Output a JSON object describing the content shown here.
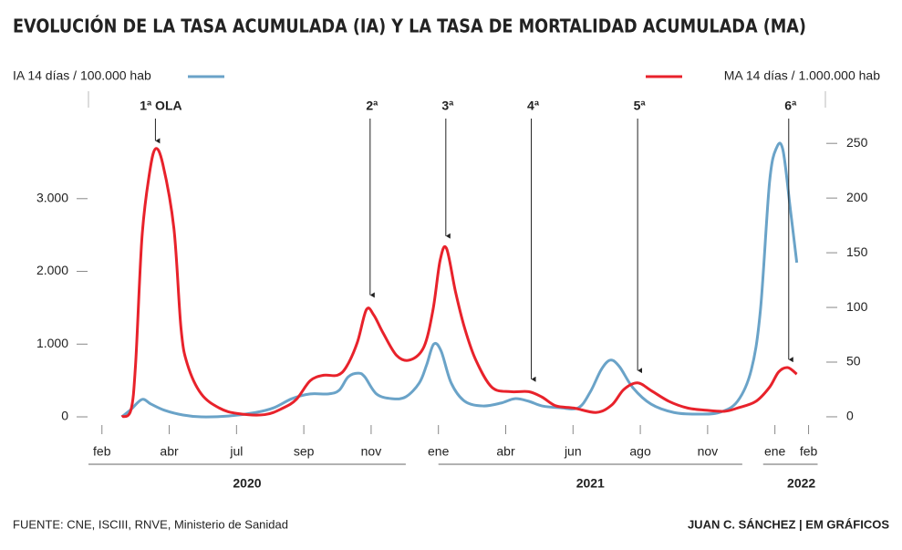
{
  "chart_data": {
    "type": "line",
    "title": "EVOLUCIÓN DE LA TASA ACUMULADA (IA) Y LA TASA DE MORTALIDAD ACUMULADA (MA)",
    "source": "FUENTE: CNE, ISCIII, RNVE, Ministerio de Sanidad",
    "credit": "JUAN C. SÁNCHEZ | EM GRÁFICOS",
    "xlim": [
      -0.4,
      21.5
    ],
    "xticks": [
      {
        "value": 0,
        "label": "feb"
      },
      {
        "value": 2,
        "label": "abr"
      },
      {
        "value": 4,
        "label": "jul"
      },
      {
        "value": 6,
        "label": "sep"
      },
      {
        "value": 8,
        "label": "nov"
      },
      {
        "value": 10,
        "label": "ene"
      },
      {
        "value": 12,
        "label": "abr"
      },
      {
        "value": 14,
        "label": "jun"
      },
      {
        "value": 16,
        "label": "ago"
      },
      {
        "value": 18,
        "label": "nov"
      },
      {
        "value": 20,
        "label": "ene"
      },
      {
        "value": 21,
        "label": "feb"
      }
    ],
    "years": [
      {
        "label": "2020",
        "start": -0.4,
        "end": 9.03
      },
      {
        "label": "2021",
        "start": 10,
        "end": 19.03
      },
      {
        "label": "2022",
        "start": 19.65,
        "end": 21.27
      }
    ],
    "ylim": [
      -100,
      3850
    ],
    "yticks": [
      0,
      {
        "value": 1000,
        "label": "1.000"
      },
      {
        "value": 2000,
        "label": "2.000"
      },
      {
        "value": 3000,
        "label": "3.000"
      }
    ],
    "y2lim": [
      -6.7,
      256
    ],
    "y2ticks": [
      0,
      50,
      100,
      150,
      200,
      250
    ],
    "series": [
      {
        "name": "IA 14 días / 100.000 hab",
        "color": "#6aa3c8",
        "axis": "y",
        "x": [
          0.59,
          0.86,
          1.19,
          1.46,
          1.86,
          2.41,
          2.95,
          3.76,
          4.57,
          5.11,
          5.65,
          6.19,
          6.73,
          7.05,
          7.32,
          7.62,
          7.81,
          8.16,
          8.62,
          9.03,
          9.43,
          9.65,
          9.86,
          10.08,
          10.38,
          10.78,
          11.32,
          11.86,
          12.27,
          12.68,
          13.08,
          13.62,
          14.16,
          14.51,
          14.84,
          15.11,
          15.38,
          15.78,
          16.32,
          17.0,
          17.68,
          18.35,
          18.89,
          19.3,
          19.57,
          19.84,
          20.05,
          20.24,
          20.46,
          20.65
        ],
        "values": [
          0,
          100,
          240,
          175,
          90,
          25,
          0,
          12,
          60,
          125,
          250,
          315,
          315,
          365,
          550,
          600,
          550,
          315,
          250,
          275,
          465,
          715,
          1000,
          905,
          465,
          215,
          150,
          190,
          250,
          215,
          150,
          125,
          125,
          340,
          650,
          780,
          690,
          400,
          175,
          60,
          38,
          60,
          215,
          650,
          1470,
          3225,
          3700,
          3665,
          2850,
          2120
        ]
      },
      {
        "name": "MA 14 días / 1.000.000 hab",
        "color": "#e8222b",
        "axis": "y2",
        "x": [
          0.59,
          0.86,
          1.0,
          1.19,
          1.41,
          1.59,
          1.81,
          2.14,
          2.35,
          2.54,
          2.95,
          3.49,
          4.03,
          4.84,
          5.38,
          5.78,
          6.19,
          6.59,
          7.0,
          7.27,
          7.59,
          7.86,
          8.08,
          8.35,
          8.76,
          9.16,
          9.57,
          9.84,
          10.05,
          10.24,
          10.51,
          10.78,
          11.11,
          11.59,
          12.14,
          12.68,
          13.08,
          13.49,
          14.03,
          14.7,
          15.16,
          15.51,
          15.92,
          16.32,
          16.86,
          17.41,
          17.95,
          18.49,
          18.89,
          19.43,
          19.84,
          20.11,
          20.38,
          20.65
        ],
        "values": [
          0,
          6,
          48,
          164,
          222,
          245,
          231,
          172,
          81,
          48,
          21,
          8,
          3,
          2,
          8,
          16,
          33,
          38,
          38,
          46,
          68,
          98,
          93,
          77,
          56,
          52,
          64,
          98,
          143,
          154,
          114,
          81,
          52,
          27,
          23,
          23,
          18,
          10,
          8,
          4,
          11,
          25,
          31,
          24,
          14,
          8,
          6,
          5,
          8,
          14,
          27,
          41,
          45,
          39
        ]
      }
    ],
    "annotations": [
      {
        "text": "1ª OLA",
        "x": 1.59,
        "y": 249
      },
      {
        "text": "2ª",
        "x": 7.97,
        "y": 108
      },
      {
        "text": "3ª",
        "x": 10.22,
        "y": 162
      },
      {
        "text": "4ª",
        "x": 12.76,
        "y": 31
      },
      {
        "text": "5ª",
        "x": 15.92,
        "y": 39
      },
      {
        "text": "6ª",
        "x": 20.41,
        "y": 49
      }
    ]
  }
}
